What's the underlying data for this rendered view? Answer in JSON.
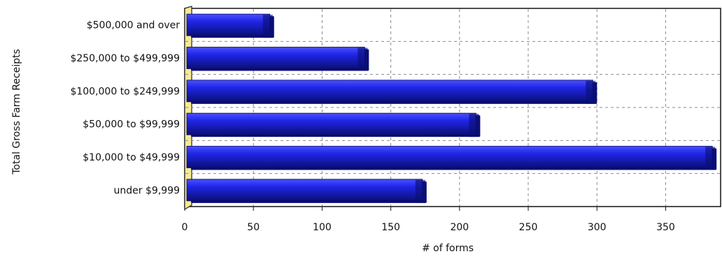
{
  "chart_data": {
    "type": "bar",
    "orientation": "horizontal",
    "categories": [
      "$500,000 and over",
      "$250,000 to $499,999",
      "$100,000 to $249,999",
      "$50,000 to $99,999",
      "$10,000 to $49,999",
      "under $9,999"
    ],
    "values": [
      62,
      131,
      297,
      212,
      384,
      173
    ],
    "x_ticks": [
      "0",
      "50",
      "100",
      "150",
      "200",
      "250",
      "300",
      "350"
    ],
    "xlabel": "# of forms",
    "ylabel": "Total Gross Farm Receipts",
    "xlim": [
      0,
      390
    ],
    "grid": true,
    "colors": {
      "bar": "#1f25e6",
      "bar_dark": "#0b0f76",
      "bar_light": "#4a50ff",
      "floor": "#f5ea95",
      "grid": "#8a8a8a"
    }
  }
}
